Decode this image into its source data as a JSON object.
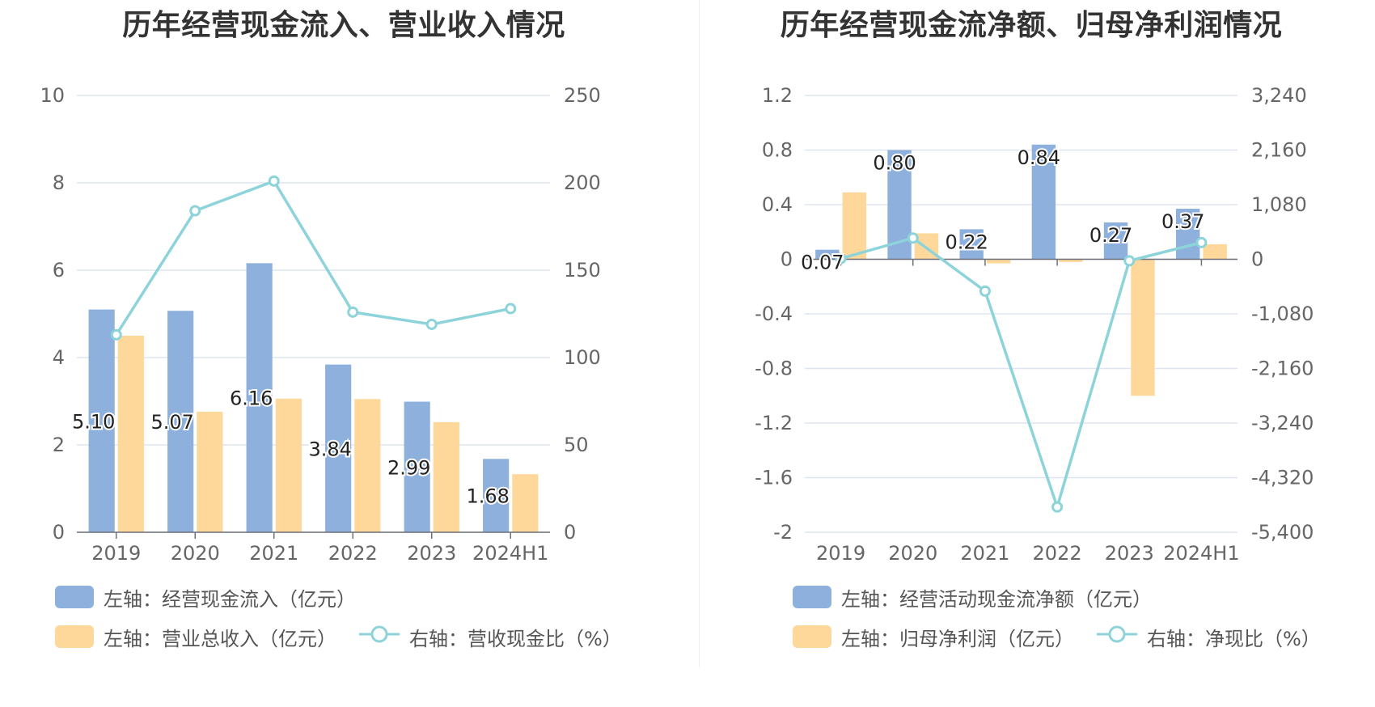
{
  "colors": {
    "bar_blue": "#8eb0dd",
    "bar_yellow": "#fdd89a",
    "line_teal": "#8dd3da",
    "grid": "#dfe5f0",
    "axis_text": "#666666"
  },
  "left_chart": {
    "title": "历年经营现金流入、营业收入情况",
    "legend": {
      "bar1": "左轴：经营现金流入（亿元）",
      "bar2": "左轴：营业总收入（亿元）",
      "line": "右轴：营收现金比（%）"
    }
  },
  "right_chart": {
    "title": "历年经营现金流净额、归母净利润情况",
    "legend": {
      "bar1": "左轴：经营活动现金流净额（亿元）",
      "bar2": "左轴：归母净利润（亿元）",
      "line": "右轴：净现比（%）"
    }
  },
  "chart_data": [
    {
      "type": "bar",
      "title": "历年经营现金流入、营业收入情况",
      "categories": [
        "2019",
        "2020",
        "2021",
        "2022",
        "2023",
        "2024H1"
      ],
      "left_axis": {
        "ylim": [
          0,
          10
        ],
        "ticks": [
          "0",
          "2",
          "4",
          "6",
          "8",
          "10"
        ]
      },
      "right_axis": {
        "ylim": [
          0,
          250
        ],
        "ticks": [
          "0",
          "50",
          "100",
          "150",
          "200",
          "250"
        ]
      },
      "series": [
        {
          "name": "左轴：经营现金流入（亿元）",
          "type": "bar",
          "axis": "left",
          "values": [
            5.1,
            5.07,
            6.16,
            3.84,
            2.99,
            1.68
          ],
          "labels": [
            "5.10",
            "5.07",
            "6.16",
            "3.84",
            "2.99",
            "1.68"
          ]
        },
        {
          "name": "左轴：营业总收入（亿元）",
          "type": "bar",
          "axis": "left",
          "values": [
            4.5,
            2.76,
            3.06,
            3.05,
            2.52,
            1.33
          ]
        },
        {
          "name": "右轴：营收现金比（%）",
          "type": "line",
          "axis": "right",
          "values": [
            113,
            184,
            201,
            126,
            119,
            128
          ]
        }
      ],
      "grid": true,
      "legend_position": "bottom"
    },
    {
      "type": "bar",
      "title": "历年经营现金流净额、归母净利润情况",
      "categories": [
        "2019",
        "2020",
        "2021",
        "2022",
        "2023",
        "2024H1"
      ],
      "left_axis": {
        "ylim": [
          -2,
          1.2
        ],
        "ticks": [
          "-2",
          "-1.6",
          "-1.2",
          "-0.8",
          "-0.4",
          "0",
          "0.4",
          "0.8",
          "1.2"
        ]
      },
      "right_axis": {
        "ylim": [
          -5400,
          3240
        ],
        "ticks": [
          "-5,400",
          "-4,320",
          "-3,240",
          "-2,160",
          "-1,080",
          "0",
          "1,080",
          "2,160",
          "3,240"
        ]
      },
      "series": [
        {
          "name": "左轴：经营活动现金流净额（亿元）",
          "type": "bar",
          "axis": "left",
          "values": [
            0.07,
            0.8,
            0.22,
            0.84,
            0.27,
            0.37
          ],
          "labels": [
            "0.07",
            "0.80",
            "0.22",
            "0.84",
            "0.27",
            "0.37"
          ]
        },
        {
          "name": "左轴：归母净利润（亿元）",
          "type": "bar",
          "axis": "left",
          "values": [
            0.49,
            0.19,
            -0.03,
            -0.02,
            -1.0,
            0.11
          ]
        },
        {
          "name": "右轴：净现比（%）",
          "type": "line",
          "axis": "right",
          "values": [
            14,
            420,
            -630,
            -4900,
            -30,
            330
          ]
        }
      ],
      "grid": true,
      "legend_position": "bottom"
    }
  ]
}
